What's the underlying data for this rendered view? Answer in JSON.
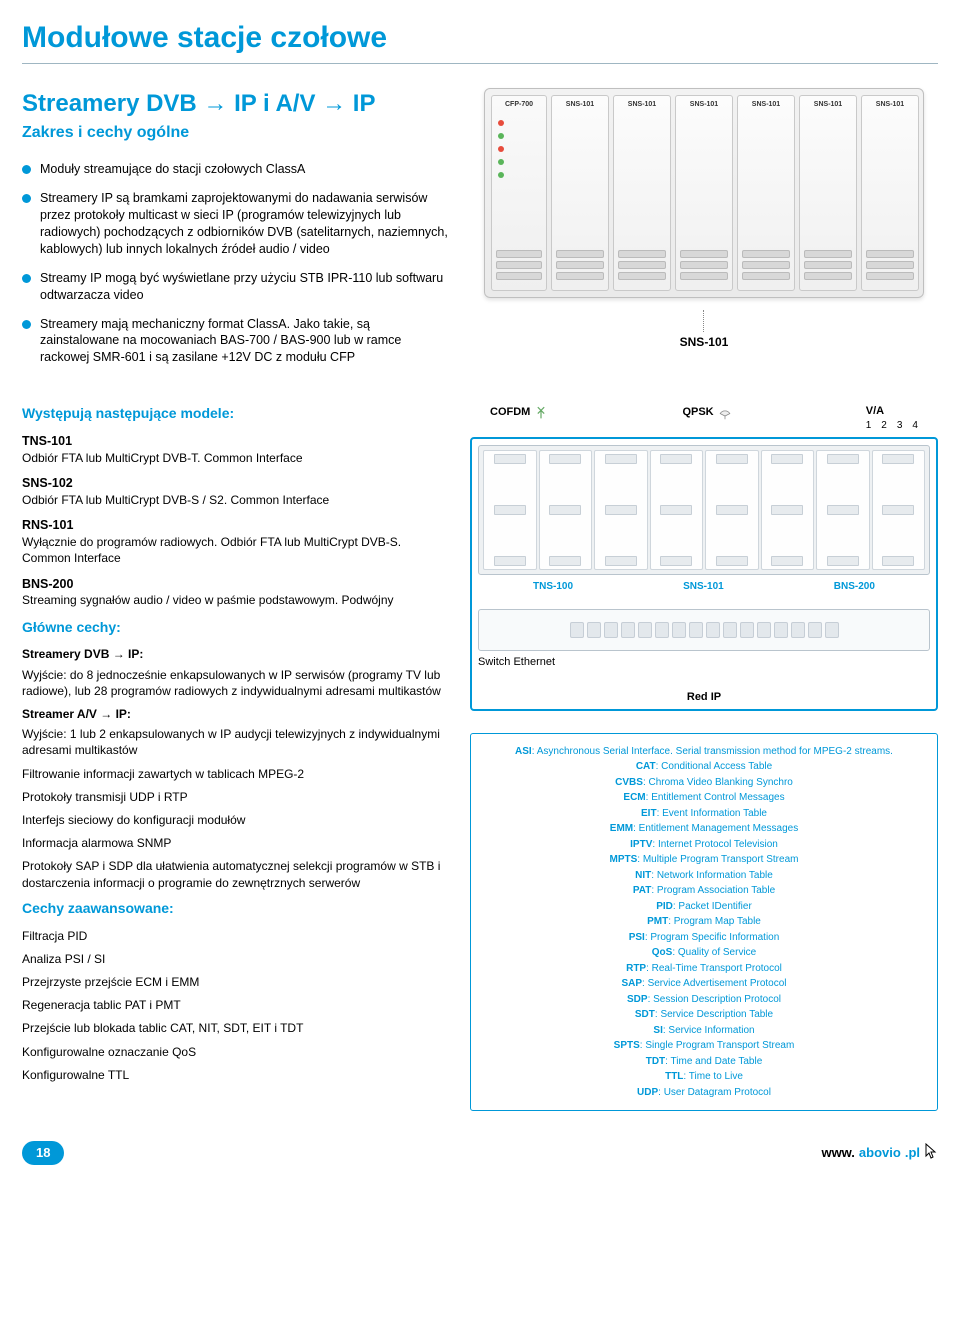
{
  "page": {
    "title": "Modułowe stacje czołowe",
    "subtitle": "Streamery DVB → IP i A/V → IP",
    "subsubtitle": "Zakres i cechy ogólne",
    "accent_color": "#0098d8",
    "page_number": "18",
    "url_prefix": "www.",
    "url_bold": "abovio",
    "url_suffix": ".pl"
  },
  "bullets": [
    "Moduły streamujące do stacji czołowych ClassA",
    "Streamery IP są bramkami zaprojektowanymi do nadawania serwisów przez protokoły multicast w sieci IP (programów telewizyjnych lub radiowych) pochodzących z odbiorników DVB (satelitarnych, naziemnych, kablowych) lub innych lokalnych źródeł audio / video",
    "Streamy IP mogą być wyświetlane przy użyciu STB IPR-110 lub softwaru odtwarzacza video",
    "Streamery mają mechaniczny format ClassA. Jako takie, są zainstalowane na mocowaniach BAS-700 / BAS-900 lub w ramce rackowej SMR-601 i są zasilane +12V DC z modułu CFP"
  ],
  "photo_callout": "SNS-101",
  "rack_modules": [
    "CFP-700",
    "SNS-101",
    "SNS-101",
    "SNS-101",
    "SNS-101",
    "SNS-101",
    "SNS-101"
  ],
  "models_heading": "Występują następujące modele:",
  "models": [
    {
      "name": "TNS-101",
      "desc": "Odbiór FTA lub MultiCrypt DVB-T. Common Interface"
    },
    {
      "name": "SNS-102",
      "desc": "Odbiór FTA lub MultiCrypt DVB-S / S2. Common Interface"
    },
    {
      "name": "RNS-101",
      "desc": "Wyłącznie do programów radiowych. Odbiór FTA lub MultiCrypt DVB-S. Common Interface"
    },
    {
      "name": "BNS-200",
      "desc": "Streaming sygnałów audio / video w paśmie podstawowym. Podwójny"
    }
  ],
  "features_heading": "Główne cechy:",
  "features_group1_title": "Streamery DVB → IP:",
  "features_group1_body": "Wyjście: do 8 jednocześnie enkapsulowanych w IP serwisów (programy TV lub radiowe), lub 28 programów radiowych z indywidualnymi adresami multikastów",
  "features_group2_title": "Streamer A/V → IP:",
  "features_group2_body": "Wyjście: 1 lub 2 enkapsulowanych w IP audycji telewizyjnych z indywidualnymi adresami multikastów",
  "feat_lines": [
    "Filtrowanie informacji zawartych w tablicach MPEG-2",
    "Protokoły transmisji UDP i RTP",
    "Interfejs sieciowy do konfiguracji modułów",
    "Informacja alarmowa SNMP",
    "Protokoły SAP i SDP dla ułatwienia automatycznej selekcji programów w STB i dostarczenia informacji o programie do zewnętrznych serwerów"
  ],
  "adv_heading": "Cechy zaawansowane:",
  "adv_lines": [
    "Filtracja PID",
    "Analiza PSI / SI",
    "Przejrzyste przejście ECM i EMM",
    "Regeneracja tablic PAT i PMT",
    "Przejście lub blokada tablic CAT, NIT, SDT, EIT i TDT",
    "Konfigurowalne oznaczanie QoS",
    "Konfigurowalne TTL"
  ],
  "diagram": {
    "input_left": "COFDM",
    "input_mid": "QPSK",
    "va_label": "V/A",
    "va_nums": [
      "1",
      "2",
      "3",
      "4"
    ],
    "slot_labels": [
      "TNS-100",
      "SNS-101",
      "BNS-200"
    ],
    "switch_label": "Switch Ethernet",
    "redip_label": "Red IP"
  },
  "glossary": [
    {
      "t": "ASI",
      "d": "Asynchronous Serial Interface. Serial transmission method for MPEG-2 streams."
    },
    {
      "t": "CAT",
      "d": "Conditional Access Table"
    },
    {
      "t": "CVBS",
      "d": "Chroma Video Blanking Synchro"
    },
    {
      "t": "ECM",
      "d": "Entitlement Control Messages"
    },
    {
      "t": "EIT",
      "d": "Event Information Table"
    },
    {
      "t": "EMM",
      "d": "Entitlement Management Messages"
    },
    {
      "t": "IPTV",
      "d": "Internet Protocol Television"
    },
    {
      "t": "MPTS",
      "d": "Multiple Program Transport Stream"
    },
    {
      "t": "NIT",
      "d": "Network Information Table"
    },
    {
      "t": "PAT",
      "d": "Program Association Table"
    },
    {
      "t": "PID",
      "d": "Packet IDentifier"
    },
    {
      "t": "PMT",
      "d": "Program Map Table"
    },
    {
      "t": "PSI",
      "d": "Program Specific Information"
    },
    {
      "t": "QoS",
      "d": "Quality of Service"
    },
    {
      "t": "RTP",
      "d": "Real-Time Transport Protocol"
    },
    {
      "t": "SAP",
      "d": "Service Advertisement Protocol"
    },
    {
      "t": "SDP",
      "d": "Session Description Protocol"
    },
    {
      "t": "SDT",
      "d": "Service Description Table"
    },
    {
      "t": "SI",
      "d": "Service Information"
    },
    {
      "t": "SPTS",
      "d": "Single Program Transport Stream"
    },
    {
      "t": "TDT",
      "d": "Time and Date Table"
    },
    {
      "t": "TTL",
      "d": "Time to Live"
    },
    {
      "t": "UDP",
      "d": "User Datagram Protocol"
    }
  ]
}
